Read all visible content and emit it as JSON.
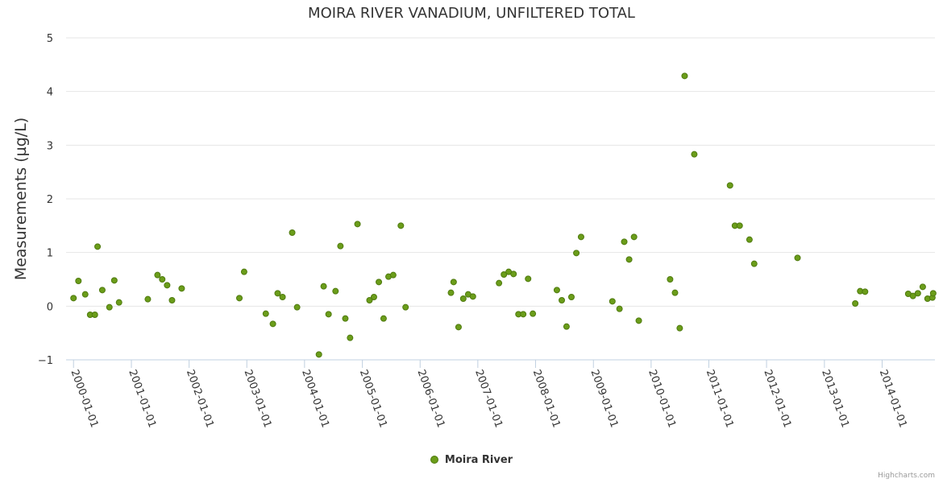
{
  "chart_data": {
    "type": "scatter",
    "title": "MOIRA RIVER VANADIUM, UNFILTERED TOTAL",
    "ylabel": "Measurements (µg/L)",
    "xlabel": "",
    "ylim": [
      -1,
      5
    ],
    "yticks": [
      -1,
      0,
      1,
      2,
      3,
      4,
      5
    ],
    "xlim": [
      "1999-11-15",
      "2014-12-01"
    ],
    "xticks": [
      "2000-01-01",
      "2001-01-01",
      "2002-01-01",
      "2003-01-01",
      "2004-01-01",
      "2005-01-01",
      "2006-01-01",
      "2007-01-01",
      "2008-01-01",
      "2009-01-01",
      "2010-01-01",
      "2011-01-01",
      "2012-01-01",
      "2013-01-01",
      "2014-01-01"
    ],
    "grid": true,
    "legend_position": "bottom-center",
    "series": [
      {
        "name": "Moira River",
        "color": "#6b9d1a",
        "points": [
          [
            "2000-01-01",
            0.15
          ],
          [
            "2000-02-01",
            0.47
          ],
          [
            "2000-03-15",
            0.22
          ],
          [
            "2000-04-15",
            -0.16
          ],
          [
            "2000-05-15",
            -0.16
          ],
          [
            "2000-06-01",
            1.11
          ],
          [
            "2000-07-01",
            0.3
          ],
          [
            "2000-08-15",
            -0.02
          ],
          [
            "2000-09-15",
            0.48
          ],
          [
            "2000-10-15",
            0.07
          ],
          [
            "2001-04-15",
            0.13
          ],
          [
            "2001-06-15",
            0.58
          ],
          [
            "2001-07-15",
            0.5
          ],
          [
            "2001-08-15",
            0.39
          ],
          [
            "2001-09-15",
            0.11
          ],
          [
            "2001-11-15",
            0.33
          ],
          [
            "2002-11-15",
            0.15
          ],
          [
            "2002-12-15",
            0.64
          ],
          [
            "2003-05-01",
            -0.14
          ],
          [
            "2003-06-15",
            -0.33
          ],
          [
            "2003-07-15",
            0.24
          ],
          [
            "2003-08-15",
            0.17
          ],
          [
            "2003-10-15",
            1.37
          ],
          [
            "2003-11-15",
            -0.02
          ],
          [
            "2004-04-01",
            -0.9
          ],
          [
            "2004-05-01",
            0.37
          ],
          [
            "2004-06-01",
            -0.15
          ],
          [
            "2004-07-15",
            0.28
          ],
          [
            "2004-08-15",
            1.12
          ],
          [
            "2004-09-15",
            -0.23
          ],
          [
            "2004-10-15",
            -0.59
          ],
          [
            "2004-12-01",
            1.53
          ],
          [
            "2005-02-15",
            0.11
          ],
          [
            "2005-03-15",
            0.17
          ],
          [
            "2005-04-15",
            0.45
          ],
          [
            "2005-05-15",
            -0.23
          ],
          [
            "2005-06-15",
            0.55
          ],
          [
            "2005-07-15",
            0.58
          ],
          [
            "2005-09-01",
            1.5
          ],
          [
            "2005-10-01",
            -0.02
          ],
          [
            "2006-07-15",
            0.25
          ],
          [
            "2006-08-01",
            0.45
          ],
          [
            "2006-09-01",
            -0.39
          ],
          [
            "2006-10-01",
            0.14
          ],
          [
            "2006-11-01",
            0.22
          ],
          [
            "2006-12-01",
            0.18
          ],
          [
            "2007-05-15",
            0.43
          ],
          [
            "2007-06-15",
            0.59
          ],
          [
            "2007-07-15",
            0.64
          ],
          [
            "2007-08-15",
            0.6
          ],
          [
            "2007-09-15",
            -0.15
          ],
          [
            "2007-10-15",
            -0.15
          ],
          [
            "2007-11-15",
            0.51
          ],
          [
            "2007-12-15",
            -0.14
          ],
          [
            "2008-05-15",
            0.3
          ],
          [
            "2008-06-15",
            0.11
          ],
          [
            "2008-07-15",
            -0.38
          ],
          [
            "2008-08-15",
            0.17
          ],
          [
            "2008-09-15",
            0.99
          ],
          [
            "2008-10-15",
            1.29
          ],
          [
            "2009-05-01",
            0.09
          ],
          [
            "2009-06-15",
            -0.05
          ],
          [
            "2009-07-15",
            1.2
          ],
          [
            "2009-08-15",
            0.87
          ],
          [
            "2009-09-15",
            1.29
          ],
          [
            "2009-10-15",
            -0.27
          ],
          [
            "2010-05-01",
            0.5
          ],
          [
            "2010-06-01",
            0.25
          ],
          [
            "2010-07-01",
            -0.41
          ],
          [
            "2010-08-01",
            4.29
          ],
          [
            "2010-10-01",
            2.83
          ],
          [
            "2011-05-15",
            2.25
          ],
          [
            "2011-06-15",
            1.5
          ],
          [
            "2011-07-15",
            1.5
          ],
          [
            "2011-09-15",
            1.24
          ],
          [
            "2011-10-15",
            0.79
          ],
          [
            "2012-07-15",
            0.9
          ],
          [
            "2013-07-15",
            0.05
          ],
          [
            "2013-08-15",
            0.28
          ],
          [
            "2013-09-15",
            0.27
          ],
          [
            "2014-06-15",
            0.23
          ],
          [
            "2014-07-15",
            0.19
          ],
          [
            "2014-08-15",
            0.24
          ],
          [
            "2014-09-15",
            0.36
          ],
          [
            "2014-10-15",
            0.14
          ],
          [
            "2014-11-15",
            0.16
          ],
          [
            "2014-11-20",
            0.24
          ]
        ]
      }
    ]
  },
  "credits": "Highcharts.com"
}
